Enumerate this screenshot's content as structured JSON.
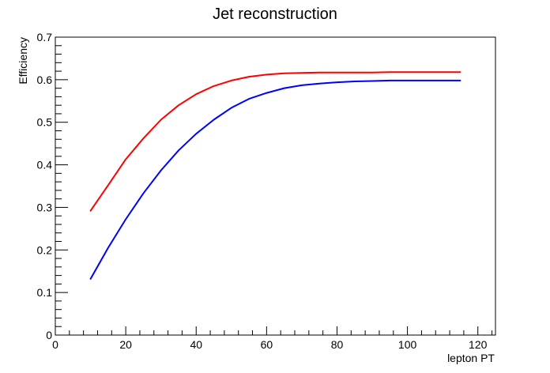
{
  "chart_data": {
    "type": "line",
    "title": "Jet reconstruction",
    "xlabel": "lepton PT",
    "ylabel": "Efficiency",
    "xlim": [
      0,
      125
    ],
    "ylim": [
      0,
      0.7
    ],
    "x_ticks": [
      "0",
      "20",
      "40",
      "60",
      "80",
      "100",
      "120"
    ],
    "y_ticks": [
      "0",
      "0.1",
      "0.2",
      "0.3",
      "0.4",
      "0.5",
      "0.6",
      "0.7"
    ],
    "grid": false,
    "legend": "none",
    "x": [
      10,
      15,
      20,
      25,
      30,
      35,
      40,
      45,
      50,
      55,
      60,
      65,
      70,
      75,
      80,
      85,
      90,
      95,
      100,
      105,
      110,
      115
    ],
    "series": [
      {
        "color": "#ff0000",
        "values": [
          0.292,
          0.352,
          0.413,
          0.462,
          0.506,
          0.54,
          0.566,
          0.585,
          0.598,
          0.607,
          0.612,
          0.615,
          0.616,
          0.617,
          0.617,
          0.617,
          0.617,
          0.618,
          0.618,
          0.618,
          0.618,
          0.618
        ]
      },
      {
        "color": "#0000ff",
        "values": [
          0.132,
          0.205,
          0.272,
          0.333,
          0.387,
          0.434,
          0.473,
          0.506,
          0.534,
          0.555,
          0.569,
          0.58,
          0.587,
          0.591,
          0.594,
          0.596,
          0.597,
          0.598,
          0.598,
          0.598,
          0.598,
          0.598
        ]
      }
    ]
  }
}
